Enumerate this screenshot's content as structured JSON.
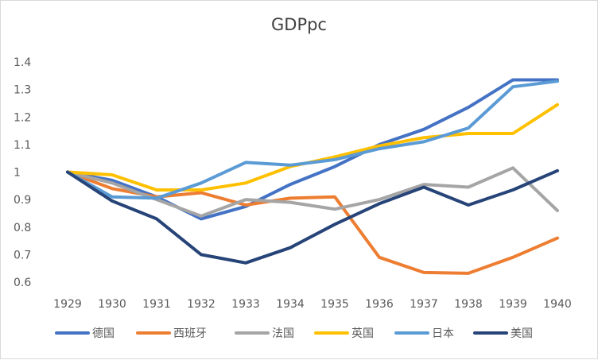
{
  "chart_data": {
    "type": "line",
    "title": "GDPpc",
    "xlabel": "",
    "ylabel": "",
    "categories": [
      "1929",
      "1930",
      "1931",
      "1932",
      "1933",
      "1934",
      "1935",
      "1936",
      "1937",
      "1938",
      "1939",
      "1940"
    ],
    "ylim": [
      0.6,
      1.4
    ],
    "yticks": [
      "0.6",
      "0.7",
      "0.8",
      "0.9",
      "1",
      "1.1",
      "1.2",
      "1.3",
      "1.4"
    ],
    "grid": false,
    "legend_position": "bottom",
    "series": [
      {
        "name": "德国",
        "color": "#4472C4",
        "values": [
          1.0,
          0.97,
          0.91,
          0.83,
          0.875,
          0.955,
          1.02,
          1.1,
          1.155,
          1.235,
          1.335,
          1.335
        ]
      },
      {
        "name": "西班牙",
        "color": "#ED7D31",
        "values": [
          1.0,
          0.94,
          0.91,
          0.925,
          0.88,
          0.905,
          0.91,
          0.69,
          0.635,
          0.632,
          0.69,
          0.76
        ]
      },
      {
        "name": "法国",
        "color": "#A5A5A5",
        "values": [
          1.0,
          0.96,
          0.9,
          0.84,
          0.9,
          0.89,
          0.865,
          0.9,
          0.955,
          0.945,
          1.015,
          0.86
        ]
      },
      {
        "name": "英国",
        "color": "#FFC000",
        "values": [
          1.0,
          0.99,
          0.935,
          0.935,
          0.96,
          1.02,
          1.055,
          1.095,
          1.125,
          1.14,
          1.14,
          1.245
        ]
      },
      {
        "name": "日本",
        "color": "#5B9BD5",
        "values": [
          1.0,
          0.91,
          0.905,
          0.96,
          1.035,
          1.025,
          1.045,
          1.085,
          1.11,
          1.16,
          1.31,
          1.33
        ]
      },
      {
        "name": "美国",
        "color": "#264478",
        "values": [
          1.0,
          0.895,
          0.83,
          0.7,
          0.67,
          0.725,
          0.81,
          0.885,
          0.945,
          0.88,
          0.935,
          1.005
        ]
      }
    ]
  }
}
